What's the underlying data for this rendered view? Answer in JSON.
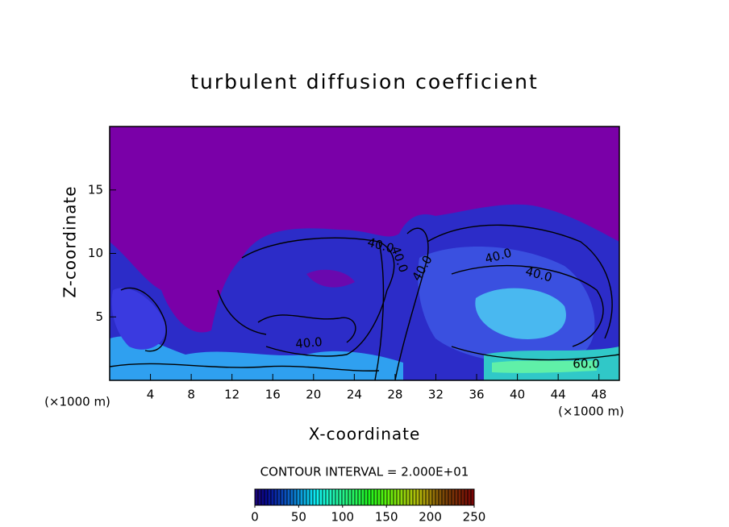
{
  "chart_data": {
    "type": "contour",
    "title": "turbulent diffusion coefficient",
    "x_label": "X-coordinate",
    "y_label": "Z-coordinate",
    "x_unit_label": "(×1000 m)",
    "xlim": [
      0,
      50
    ],
    "xticks": [
      4,
      8,
      12,
      16,
      20,
      24,
      28,
      32,
      36,
      40,
      44,
      48
    ],
    "ylim": [
      0,
      20
    ],
    "yticks": [
      5,
      10,
      15
    ],
    "contour_interval": "CONTOUR INTERVAL = 2.000E+01",
    "contour_labels": [
      "40.0",
      "40.0",
      "40.0",
      "40.0",
      "40.0",
      "40.0",
      "60.0"
    ],
    "colorbar": {
      "lim": [
        0,
        250
      ],
      "ticks": [
        0,
        50,
        100,
        150,
        200,
        250
      ]
    }
  }
}
